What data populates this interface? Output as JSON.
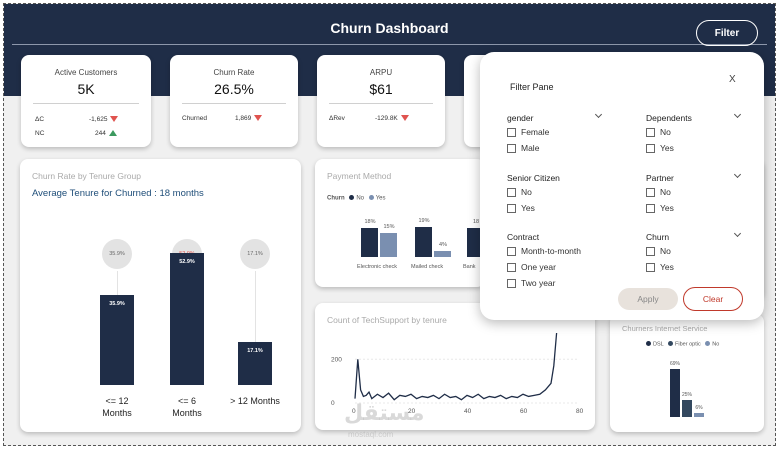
{
  "header": {
    "title": "Churn Dashboard",
    "filter_label": "Filter"
  },
  "kpis": {
    "active": {
      "label": "Active Customers",
      "value": "5K",
      "sub1_label": "ΔC",
      "sub1_value": "-1,625",
      "sub2_label": "NC",
      "sub2_value": "244"
    },
    "churn_rate": {
      "label": "Churn Rate",
      "value": "26.5%",
      "sub1_label": "Churned",
      "sub1_value": "1,869"
    },
    "arpu": {
      "label": "ARPU",
      "value": "$61",
      "sub1_label": "ΔRev",
      "sub1_value": "-129.8K"
    }
  },
  "tenure_card": {
    "title": "Churn Rate by Tenure Group",
    "subtitle": "Average Tenure for Churned : 18 months",
    "chart_data": {
      "type": "bar",
      "categories": [
        "<= 12 Months",
        "<= 6 Months",
        "> 12 Months"
      ],
      "values": [
        35.9,
        52.9,
        17.1
      ],
      "value_labels": [
        "35.9%",
        "52.9%",
        "17.1%"
      ],
      "ylim": [
        0,
        60
      ]
    }
  },
  "payment_card": {
    "title": "Payment Method",
    "legend_title": "Churn",
    "legend_items": [
      "No",
      "Yes"
    ],
    "colors": {
      "No": "#1f2d47",
      "Yes": "#7a8fb0"
    },
    "chart_data": {
      "type": "bar",
      "categories": [
        "Electronic check",
        "Mailed check",
        "Bank"
      ],
      "series": [
        {
          "name": "No",
          "values": [
            18,
            19,
            18
          ]
        },
        {
          "name": "Yes",
          "values": [
            15,
            4,
            null
          ]
        }
      ],
      "value_labels": {
        "No": [
          "18%",
          "19%",
          "18"
        ],
        "Yes": [
          "15%",
          "4%",
          ""
        ]
      }
    }
  },
  "techsupport_card": {
    "title": "Count of TechSupport by tenure",
    "chart_data": {
      "type": "line",
      "x": [
        0,
        1,
        2,
        3,
        4,
        5,
        6,
        8,
        10,
        12,
        14,
        16,
        18,
        20,
        22,
        24,
        26,
        28,
        30,
        32,
        34,
        36,
        38,
        40,
        42,
        44,
        46,
        48,
        50,
        52,
        54,
        56,
        58,
        60,
        62,
        64,
        66,
        68,
        70,
        71,
        72
      ],
      "y": [
        20,
        200,
        60,
        30,
        35,
        50,
        20,
        40,
        25,
        45,
        15,
        35,
        30,
        40,
        20,
        30,
        25,
        35,
        20,
        40,
        25,
        30,
        15,
        35,
        25,
        40,
        20,
        30,
        25,
        35,
        20,
        30,
        25,
        40,
        30,
        35,
        40,
        60,
        90,
        170,
        320
      ],
      "ylim": [
        0,
        320
      ],
      "xlim": [
        0,
        80
      ],
      "y_ticks": [
        "200",
        "0"
      ],
      "x_ticks": [
        "0",
        "20",
        "40",
        "60",
        "80"
      ]
    }
  },
  "internet_card": {
    "title": "Churners Internet Service",
    "legend_items": [
      "DSL",
      "Fiber optic",
      "No"
    ],
    "colors": {
      "DSL": "#1f2d47",
      "Fiber optic": "#33485f",
      "No": "#7a8fb0"
    },
    "chart_data": {
      "type": "bar",
      "categories": [
        "DSL",
        "Fiber optic",
        "No"
      ],
      "values": [
        69,
        25,
        6
      ],
      "value_labels": [
        "69%",
        "25%",
        "6%"
      ]
    }
  },
  "filter_pane": {
    "title": "Filter Pane",
    "close_label": "X",
    "groups": {
      "gender": {
        "title": "gender",
        "options": [
          "Female",
          "Male"
        ]
      },
      "dependents": {
        "title": "Dependents",
        "options": [
          "No",
          "Yes"
        ]
      },
      "senior": {
        "title": "Senior Citizen",
        "options": [
          "No",
          "Yes"
        ]
      },
      "partner": {
        "title": "Partner",
        "options": [
          "No",
          "Yes"
        ]
      },
      "contract": {
        "title": "Contract",
        "options": [
          "Month-to-month",
          "One year",
          "Two year"
        ]
      },
      "churn": {
        "title": "Churn",
        "options": [
          "No",
          "Yes"
        ]
      }
    },
    "apply_label": "Apply",
    "clear_label": "Clear"
  },
  "watermark": {
    "text": "مستقل",
    "sub": "mostaql.com"
  }
}
